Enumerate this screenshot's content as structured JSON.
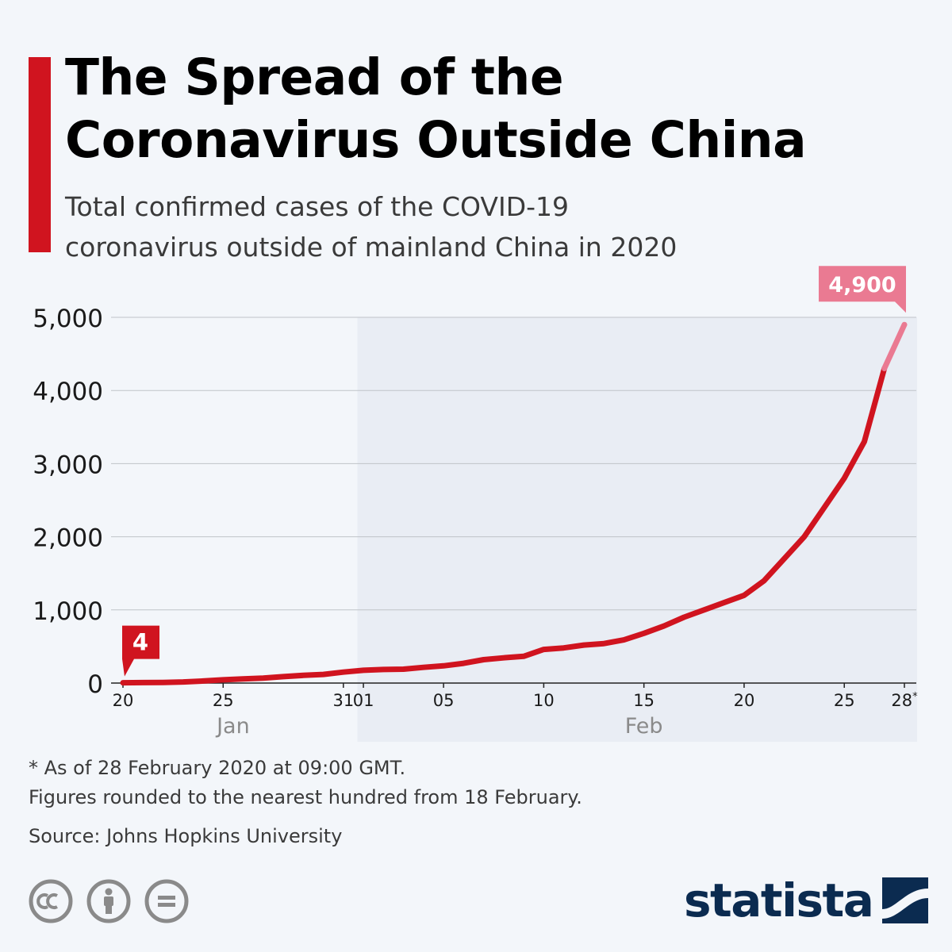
{
  "header": {
    "title_line1": "The Spread of the",
    "title_line2": "Coronavirus Outside China",
    "subtitle_line1": "Total confirmed cases of the COVID-19",
    "subtitle_line2": "coronavirus outside of mainland China in 2020"
  },
  "chart_data": {
    "type": "line",
    "title": "The Spread of the Coronavirus Outside China",
    "subtitle": "Total confirmed cases of the COVID-19 coronavirus outside of mainland China in 2020",
    "xlabel": "",
    "ylabel": "",
    "ylim": [
      0,
      5000
    ],
    "yticks": [
      0,
      1000,
      2000,
      3000,
      4000,
      5000
    ],
    "ytick_labels": [
      "0",
      "1,000",
      "2,000",
      "3,000",
      "4,000",
      "5,000"
    ],
    "x_range": [
      0,
      39
    ],
    "xticks": [
      {
        "day": 0,
        "label": "20"
      },
      {
        "day": 5,
        "label": "25"
      },
      {
        "day": 11,
        "label": "31"
      },
      {
        "day": 12,
        "label": "01"
      },
      {
        "day": 16,
        "label": "05"
      },
      {
        "day": 21,
        "label": "10"
      },
      {
        "day": 26,
        "label": "15"
      },
      {
        "day": 31,
        "label": "20"
      },
      {
        "day": 36,
        "label": "25"
      },
      {
        "day": 39,
        "label": "28",
        "suffix": "*"
      }
    ],
    "months": [
      {
        "label": "Jan",
        "day": 5.5
      },
      {
        "label": "Feb",
        "day": 26
      }
    ],
    "feb_start_day": 11.7,
    "grid": true,
    "series": [
      {
        "name": "Confirmed cases outside mainland China",
        "color": "#d0141f",
        "estimate_color": "#ea7a92",
        "x": [
          0,
          1,
          2,
          3,
          4,
          5,
          6,
          7,
          8,
          9,
          10,
          11,
          12,
          13,
          14,
          15,
          16,
          17,
          18,
          19,
          20,
          21,
          22,
          23,
          24,
          25,
          26,
          27,
          28,
          29,
          30,
          31,
          32,
          33,
          34,
          35,
          36,
          37,
          38,
          39
        ],
        "values": [
          4,
          6,
          9,
          15,
          28,
          44,
          57,
          68,
          88,
          105,
          118,
          150,
          175,
          185,
          190,
          215,
          235,
          270,
          320,
          345,
          365,
          460,
          480,
          520,
          540,
          590,
          680,
          780,
          900,
          1000,
          1100,
          1200,
          1400,
          1700,
          2000,
          2400,
          2800,
          3300,
          4300,
          4900
        ],
        "estimate_from_index": 38
      }
    ],
    "annotations": [
      {
        "text": "4",
        "day": 0,
        "value": 4,
        "color": "#d0141f"
      },
      {
        "text": "4,900",
        "day": 39,
        "value": 4900,
        "color": "#ea7a92"
      }
    ]
  },
  "footer": {
    "note1": "* As of 28 February 2020 at 09:00 GMT.",
    "note2": "Figures rounded to the nearest hundred from 18 February.",
    "source": "Source: Johns Hopkins University",
    "license_icons": [
      "creative-commons-icon",
      "attribution-icon",
      "no-derivatives-icon"
    ],
    "brand": "statista"
  },
  "colors": {
    "accent": "#d0141f",
    "highlight": "#ea7a92",
    "brand": "#0b2b50",
    "background": "#f3f6fa",
    "shade": "#e9edf4"
  }
}
